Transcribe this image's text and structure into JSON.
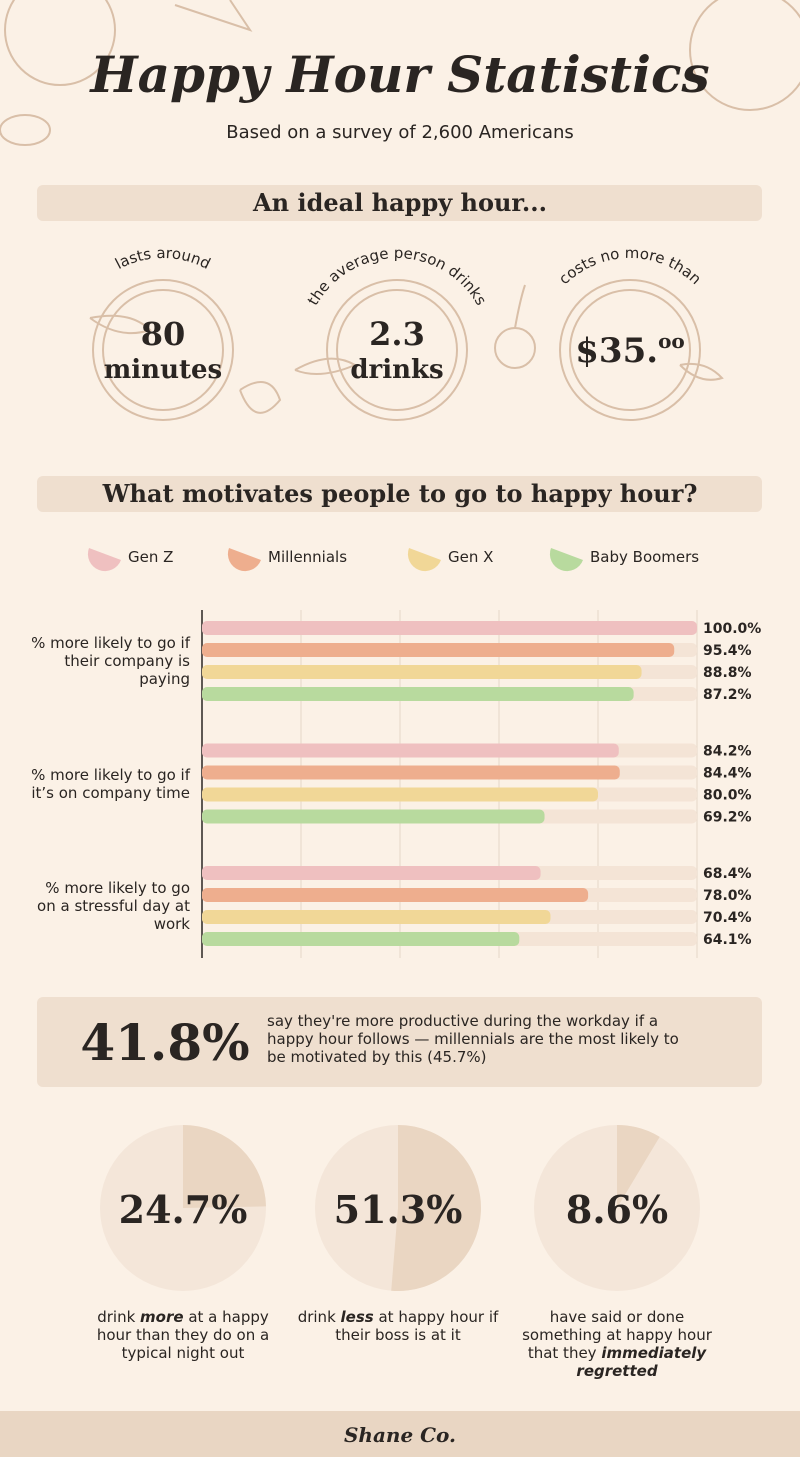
{
  "header": {
    "title": "Happy Hour Statistics",
    "subtitle": "Based on a survey of 2,600 Americans"
  },
  "ideal": {
    "heading": "An ideal happy hour...",
    "items": [
      {
        "caption": "lasts around",
        "value": "80",
        "unit": "minutes"
      },
      {
        "caption": "the average person drinks",
        "value": "2.3",
        "unit": "drinks"
      },
      {
        "caption": "costs no more than",
        "value": "$35.",
        "unit": "oo"
      }
    ]
  },
  "motivation": {
    "heading": "What motivates people to go to happy hour?"
  },
  "stat": {
    "value": "41.8%",
    "text": "say they're more productive during the workday if a happy hour follows — millennials are the most likely to be motivated by this (45.7%)"
  },
  "chart_data": [
    {
      "type": "bar",
      "orientation": "horizontal",
      "categories": [
        "% more likely to go if their company is paying",
        "% more likely to go if it’s on company time",
        "% more likely to go on a stressful day at work"
      ],
      "series": [
        {
          "name": "Gen Z",
          "color": "#efc0c0",
          "values": [
            100.0,
            84.2,
            68.4
          ],
          "value_labels": [
            "100.0%",
            "84.2%",
            "68.4%"
          ]
        },
        {
          "name": "Millennials",
          "color": "#eeae8e",
          "values": [
            95.4,
            84.4,
            78.0
          ],
          "value_labels": [
            "95.4%",
            "84.4%",
            "78.0%"
          ]
        },
        {
          "name": "Gen X",
          "color": "#f1d797",
          "values": [
            88.8,
            80.0,
            70.4
          ],
          "value_labels": [
            "88.8%",
            "80.0%",
            "70.4%"
          ]
        },
        {
          "name": "Baby Boomers",
          "color": "#b8da9e",
          "values": [
            87.2,
            69.2,
            64.1
          ],
          "value_labels": [
            "87.2%",
            "69.2%",
            "64.1%"
          ]
        }
      ],
      "xlim": [
        0,
        100
      ],
      "xticks": [
        0,
        20,
        40,
        60,
        80,
        100
      ],
      "grid": true
    },
    {
      "type": "pie",
      "values": [
        24.7
      ],
      "value_labels": [
        "24.7%"
      ],
      "color": "#ead6c2",
      "caption": [
        "drink ",
        "more",
        " at a happy hour than they do on a typical night out"
      ]
    },
    {
      "type": "pie",
      "values": [
        51.3
      ],
      "value_labels": [
        "51.3%"
      ],
      "color": "#ead6c2",
      "caption": [
        "drink ",
        "less",
        " at happy hour if their boss is at it"
      ]
    },
    {
      "type": "pie",
      "values": [
        8.6
      ],
      "value_labels": [
        "8.6%"
      ],
      "color": "#ead6c2",
      "caption": [
        "have said or done something at happy hour that they ",
        "immediately regretted"
      ]
    }
  ],
  "footer": {
    "brand": "Shane Co."
  }
}
